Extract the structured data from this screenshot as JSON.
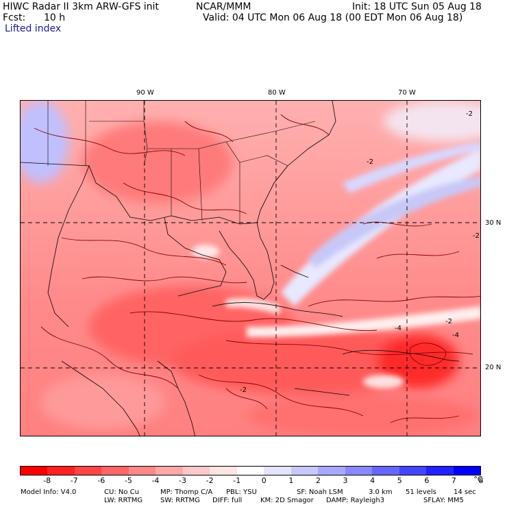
{
  "header": {
    "model_line": "HIWC Radar II 3km ARW-GFS init",
    "org": "NCAR/MMM",
    "init": "Init: 18 UTC Sun 05 Aug 18",
    "fcst_label": "Fcst:",
    "fcst_value": "10 h",
    "valid": "Valid: 04 UTC Mon 06 Aug 18 (00 EDT Mon 06 Aug 18)",
    "field": "Lifted index"
  },
  "map": {
    "lon_labels": [
      "90 W",
      "80 W",
      "70 W"
    ],
    "lat_labels": [
      "30 N",
      "20 N"
    ],
    "contour_labels": [
      "-2",
      "-2",
      "-2",
      "-2",
      "-4",
      "-4",
      "-2"
    ]
  },
  "colorbar": {
    "labels": [
      "-8",
      "-7",
      "-6",
      "-5",
      "-4",
      "-3",
      "-2",
      "-1",
      "0",
      "1",
      "2",
      "3",
      "4",
      "5",
      "6",
      "7",
      "8",
      "°C"
    ],
    "colors": [
      "#ff0000",
      "#ff2222",
      "#ff4545",
      "#ff6666",
      "#ff8888",
      "#ffa8a8",
      "#ffc8c8",
      "#ffe4e4",
      "#ffffff",
      "#e4e4ff",
      "#c8c8ff",
      "#a8a8ff",
      "#8888ff",
      "#6666ff",
      "#4545ff",
      "#2222ff",
      "#0000ff"
    ]
  },
  "footer": {
    "line1": [
      "Model Info: V4.0",
      "CU: No Cu",
      "MP: Thomp C/A",
      "PBL: YSU",
      "SF: Noah LSM",
      "3.0 km",
      "51 levels",
      "14 sec"
    ],
    "line2": [
      "LW: RRTMG",
      "SW: RRTMG",
      "DIFF: full",
      "KM: 2D Smagor",
      "DAMP: Rayleigh3",
      "SFLAY: MM5"
    ]
  }
}
